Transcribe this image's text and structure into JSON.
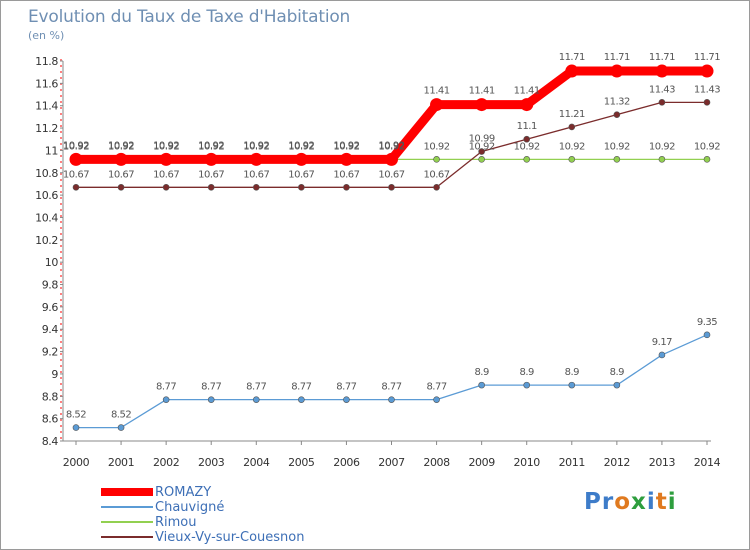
{
  "title": "Evolution du Taux de Taxe d'Habitation",
  "subtitle": "(en %)",
  "logo": {
    "text": "Proxiti",
    "colors": [
      "#3d7cc9",
      "#3d7cc9",
      "#e07a1f",
      "#2e9e3e",
      "#3d7cc9",
      "#e07a1f",
      "#2e9e3e"
    ]
  },
  "chart_data": {
    "type": "line",
    "x": [
      "2000",
      "2001",
      "2002",
      "2003",
      "2004",
      "2005",
      "2006",
      "2007",
      "2008",
      "2009",
      "2010",
      "2011",
      "2012",
      "2013",
      "2014"
    ],
    "ylim": [
      8.4,
      11.8
    ],
    "yticks": [
      "8.4",
      "8.6",
      "8.8",
      "9",
      "9.2",
      "9.4",
      "9.6",
      "9.8",
      "10",
      "10.2",
      "10.4",
      "10.6",
      "10.8",
      "11",
      "11.2",
      "11.4",
      "11.6",
      "11.8"
    ],
    "grid": false,
    "legend_position": "bottom-left",
    "series": [
      {
        "name": "ROMAZY",
        "color": "#ff0000",
        "values": [
          10.92,
          10.92,
          10.92,
          10.92,
          10.92,
          10.92,
          10.92,
          10.92,
          11.41,
          11.41,
          11.41,
          11.71,
          11.71,
          11.71,
          11.71
        ],
        "labels": [
          "10.92",
          "10.92",
          "10.92",
          "10.92",
          "10.92",
          "10.92",
          "10.92",
          "10.92",
          "11.41",
          "11.41",
          "11.41",
          "11.71",
          "11.71",
          "11.71",
          "11.71"
        ]
      },
      {
        "name": "Chauvigné",
        "color": "#5b9bd5",
        "values": [
          8.52,
          8.52,
          8.77,
          8.77,
          8.77,
          8.77,
          8.77,
          8.77,
          8.77,
          8.9,
          8.9,
          8.9,
          8.9,
          9.17,
          9.35
        ],
        "labels": [
          "8.52",
          "8.52",
          "8.77",
          "8.77",
          "8.77",
          "8.77",
          "8.77",
          "8.77",
          "8.77",
          "8.9",
          "8.9",
          "8.9",
          "8.9",
          "9.17",
          "9.35"
        ]
      },
      {
        "name": "Rimou",
        "color": "#92d050",
        "values": [
          10.92,
          10.92,
          10.92,
          10.92,
          10.92,
          10.92,
          10.92,
          10.92,
          10.92,
          10.92,
          10.92,
          10.92,
          10.92,
          10.92,
          10.92
        ],
        "labels": [
          "10.92",
          "10.92",
          "10.92",
          "10.92",
          "10.92",
          "10.92",
          "10.92",
          "10.92",
          "10.92",
          "10.92",
          "10.92",
          "10.92",
          "10.92",
          "10.92",
          "10.92"
        ]
      },
      {
        "name": "Vieux-Vy-sur-Couesnon",
        "color": "#7b2c2c",
        "values": [
          10.67,
          10.67,
          10.67,
          10.67,
          10.67,
          10.67,
          10.67,
          10.67,
          10.67,
          10.99,
          11.1,
          11.21,
          11.32,
          11.43,
          11.43
        ],
        "labels": [
          "10.67",
          "10.67",
          "10.67",
          "10.67",
          "10.67",
          "10.67",
          "10.67",
          "10.67",
          "10.67",
          "10.99",
          "11.1",
          "11.21",
          "11.32",
          "11.43",
          "11.43"
        ]
      }
    ]
  }
}
